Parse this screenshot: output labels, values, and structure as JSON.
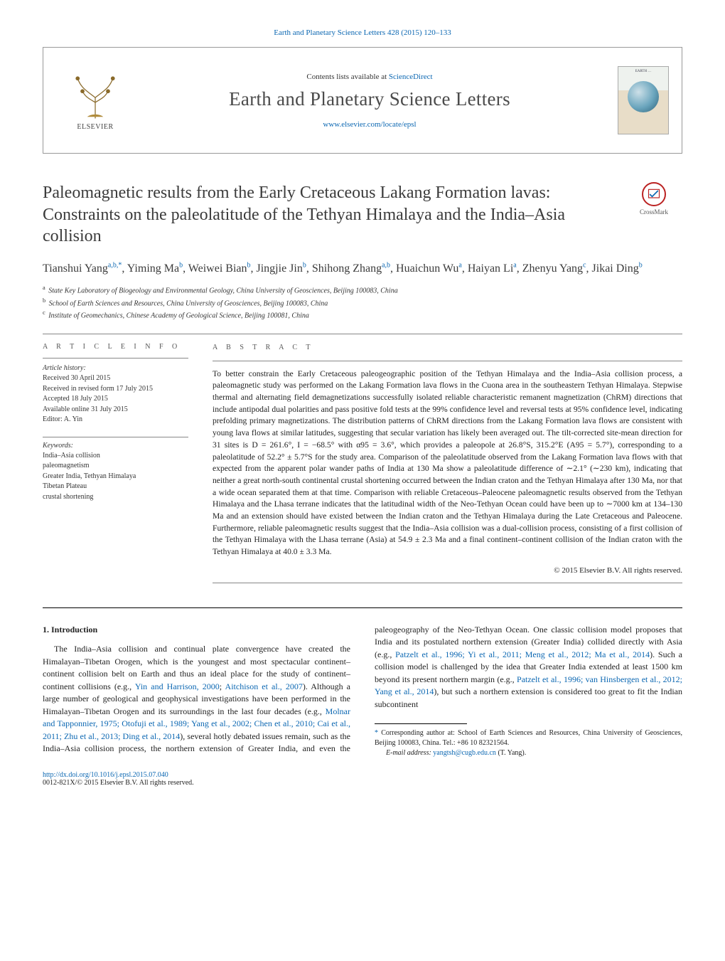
{
  "top_link": {
    "prefix": "",
    "journal_ref_link": "Earth and Planetary Science Letters 428 (2015) 120–133"
  },
  "header": {
    "contents_prefix": "Contents lists available at ",
    "contents_link": "ScienceDirect",
    "journal_name": "Earth and Planetary Science Letters",
    "homepage_url": "www.elsevier.com/locate/epsl",
    "publisher_word": "ELSEVIER",
    "cover_title": "EARTH …"
  },
  "crossmark_label": "CrossMark",
  "article": {
    "title": "Paleomagnetic results from the Early Cretaceous Lakang Formation lavas: Constraints on the paleolatitude of the Tethyan Himalaya and the India–Asia collision",
    "authors_html": "Tianshui Yang<sup>a,b,*</sup>, Yiming Ma<sup>b</sup>, Weiwei Bian<sup>b</sup>, Jingjie Jin<sup>b</sup>, Shihong Zhang<sup>a,b</sup>, Huaichun Wu<sup>a</sup>, Haiyan Li<sup>a</sup>, Zhenyu Yang<sup>c</sup>, Jikai Ding<sup>b</sup>"
  },
  "affiliations": [
    {
      "sup": "a",
      "text": "State Key Laboratory of Biogeology and Environmental Geology, China University of Geosciences, Beijing 100083, China"
    },
    {
      "sup": "b",
      "text": "School of Earth Sciences and Resources, China University of Geosciences, Beijing 100083, China"
    },
    {
      "sup": "c",
      "text": "Institute of Geomechanics, Chinese Academy of Geological Science, Beijing 100081, China"
    }
  ],
  "info": {
    "heading": "a r t i c l e   i n f o",
    "history_label": "Article history:",
    "history": [
      "Received 30 April 2015",
      "Received in revised form 17 July 2015",
      "Accepted 18 July 2015",
      "Available online 31 July 2015",
      "Editor: A. Yin"
    ],
    "keywords_label": "Keywords:",
    "keywords": [
      "India–Asia collision",
      "paleomagnetism",
      "Greater India, Tethyan Himalaya",
      "Tibetan Plateau",
      "crustal shortening"
    ]
  },
  "abstract": {
    "heading": "a b s t r a c t",
    "text": "To better constrain the Early Cretaceous paleogeographic position of the Tethyan Himalaya and the India–Asia collision process, a paleomagnetic study was performed on the Lakang Formation lava flows in the Cuona area in the southeastern Tethyan Himalaya. Stepwise thermal and alternating field demagnetizations successfully isolated reliable characteristic remanent magnetization (ChRM) directions that include antipodal dual polarities and pass positive fold tests at the 99% confidence level and reversal tests at 95% confidence level, indicating prefolding primary magnetizations. The distribution patterns of ChRM directions from the Lakang Formation lava flows are consistent with young lava flows at similar latitudes, suggesting that secular variation has likely been averaged out. The tilt-corrected site-mean direction for 31 sites is D = 261.6°, I = −68.5° with α95 = 3.6°, which provides a paleopole at 26.8°S, 315.2°E (A95 = 5.7°), corresponding to a paleolatitude of 52.2° ± 5.7°S for the study area. Comparison of the paleolatitude observed from the Lakang Formation lava flows with that expected from the apparent polar wander paths of India at 130 Ma show a paleolatitude difference of ∼2.1° (∼230 km), indicating that neither a great north-south continental crustal shortening occurred between the Indian craton and the Tethyan Himalaya after 130 Ma, nor that a wide ocean separated them at that time. Comparison with reliable Cretaceous–Paleocene paleomagnetic results observed from the Tethyan Himalaya and the Lhasa terrane indicates that the latitudinal width of the Neo-Tethyan Ocean could have been up to ∼7000 km at 134–130 Ma and an extension should have existed between the Indian craton and the Tethyan Himalaya during the Late Cretaceous and Paleocene. Furthermore, reliable paleomagnetic results suggest that the India–Asia collision was a dual-collision process, consisting of a first collision of the Tethyan Himalaya with the Lhasa terrane (Asia) at 54.9 ± 2.3 Ma and a final continent–continent collision of the Indian craton with the Tethyan Himalaya at 40.0 ± 3.3 Ma.",
    "copyright": "© 2015 Elsevier B.V. All rights reserved."
  },
  "intro": {
    "heading": "1. Introduction",
    "p1_pre": "The India–Asia collision and continual plate convergence have created the Himalayan–Tibetan Orogen, which is the youngest and most spectacular continent–continent collision belt on Earth and thus an ideal place for the study of continent–continent collisions (e.g., ",
    "p1_link1": "Yin and Harrison, 2000",
    "p1_mid1": "; ",
    "p1_link2": "Aitchison et al., 2007",
    "p1_mid2": "). Although a large number of geological and geophysical investigations have been performed in the Himalayan–Tibetan Orogen and its sur",
    "p2_pre": "roundings in the last four decades (e.g., ",
    "p2_links": "Molnar and Tapponnier, 1975; Otofuji et al., 1989; Yang et al., 2002; Chen et al., 2010; Cai et al., 2011; Zhu et al., 2013; Ding et al., 2014",
    "p2_mid": "), several hotly debated issues remain, such as the India–Asia collision process, the northern extension of Greater India, and even the paleogeography of the Neo-Tethyan Ocean. One classic collision model proposes that India and its postulated northern extension (Greater India) collided directly with Asia (e.g., ",
    "p2_links2": "Patzelt et al., 1996; Yi et al., 2011; Meng et al., 2012; Ma et al., 2014",
    "p2_mid2": "). Such a collision model is challenged by the idea that Greater India extended at least 1500 km beyond its present northern margin (e.g., ",
    "p2_links3": "Patzelt et al., 1996; van Hinsbergen et al., 2012; Yang et al., 2014",
    "p2_tail": "), but such a northern extension is considered too great to fit the Indian subcontinent"
  },
  "footnotes": {
    "corr": "Corresponding author at: School of Earth Sciences and Resources, China University of Geosciences, Beijing 100083, China. Tel.: +86 10 82321564.",
    "email_label": "E-mail address:",
    "email": "yangtsh@cugb.edu.cn",
    "email_who": "(T. Yang)."
  },
  "bottom": {
    "doi": "http://dx.doi.org/10.1016/j.epsl.2015.07.040",
    "issn_line": "0012-821X/© 2015 Elsevier B.V. All rights reserved."
  },
  "colors": {
    "link": "#0b67b2",
    "text": "#222222",
    "rule": "#888888"
  }
}
